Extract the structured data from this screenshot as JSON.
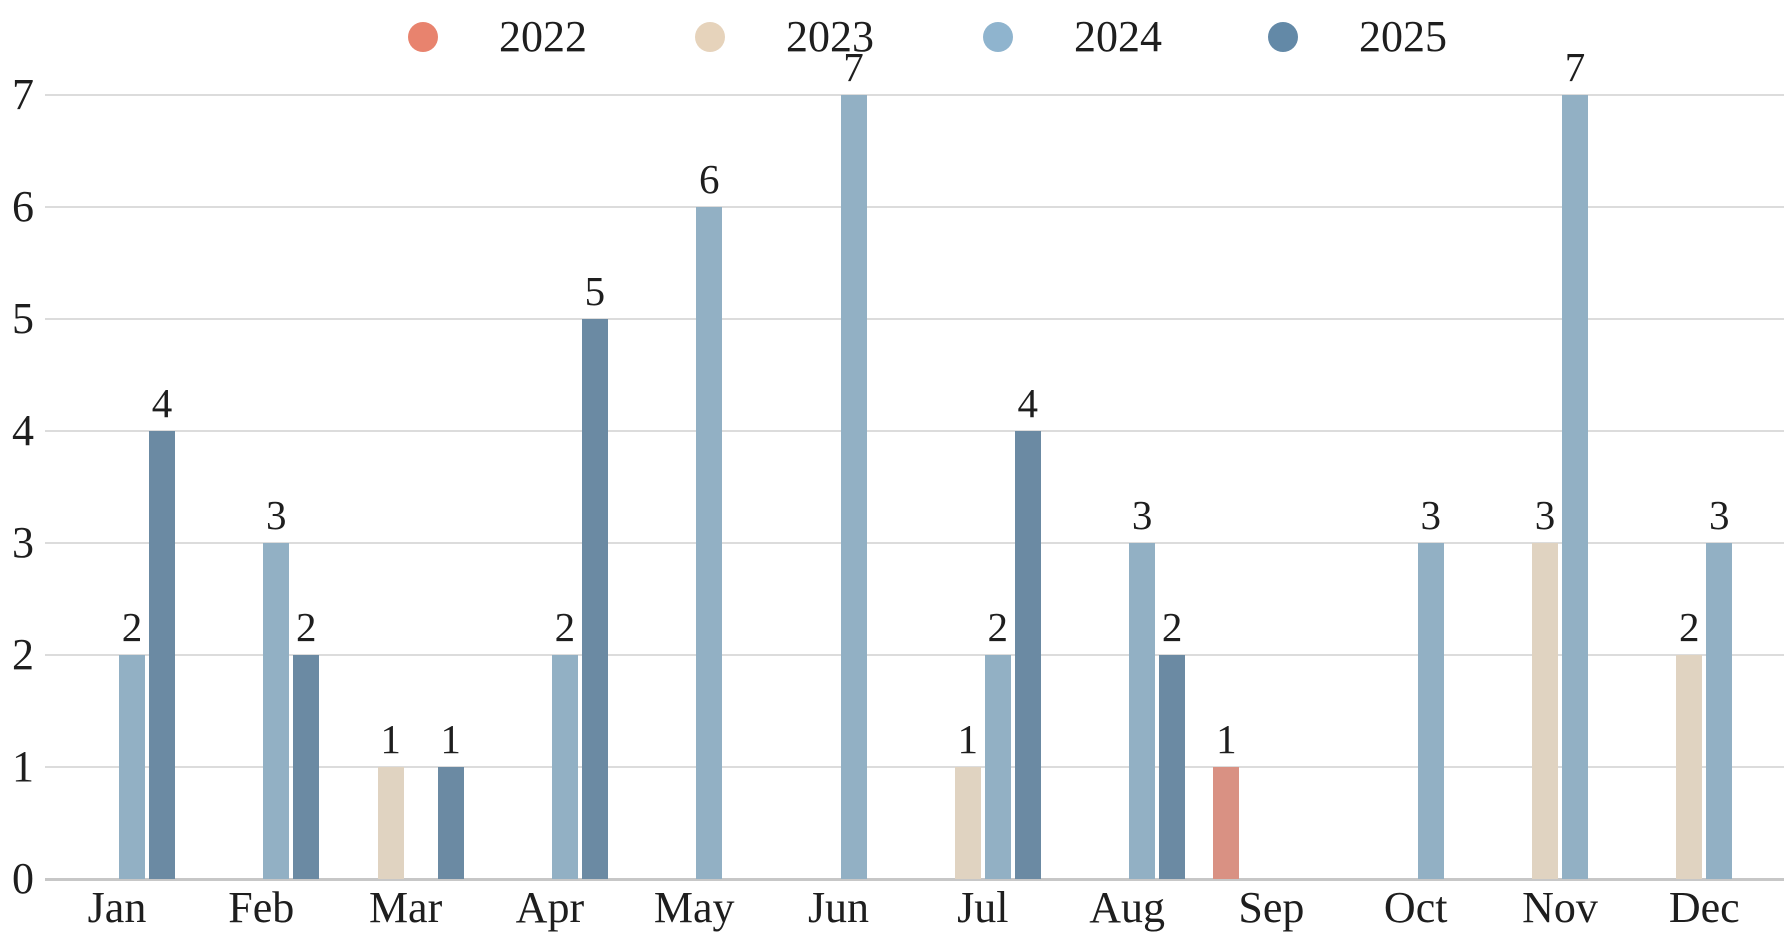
{
  "chart_data": {
    "type": "bar",
    "title": "",
    "xlabel": "",
    "ylabel": "",
    "categories": [
      "Jan",
      "Feb",
      "Mar",
      "Apr",
      "May",
      "Jun",
      "Jul",
      "Aug",
      "Sep",
      "Oct",
      "Nov",
      "Dec"
    ],
    "series": [
      {
        "name": "2022",
        "dot_color": "#E8836E",
        "bar_color": "#D99183",
        "values": [
          null,
          null,
          null,
          null,
          null,
          null,
          null,
          null,
          1,
          null,
          null,
          null
        ]
      },
      {
        "name": "2023",
        "dot_color": "#E6D3BB",
        "bar_color": "#E0D3C1",
        "values": [
          null,
          null,
          1,
          null,
          null,
          null,
          1,
          null,
          null,
          null,
          3,
          2
        ]
      },
      {
        "name": "2024",
        "dot_color": "#8FB4CE",
        "bar_color": "#92B0C4",
        "values": [
          2,
          3,
          null,
          2,
          6,
          7,
          2,
          3,
          null,
          3,
          7,
          3
        ]
      },
      {
        "name": "2025",
        "dot_color": "#6389A7",
        "bar_color": "#6B8AA3",
        "values": [
          4,
          2,
          1,
          5,
          null,
          null,
          4,
          2,
          null,
          null,
          null,
          null
        ]
      }
    ],
    "ylim": [
      0,
      7
    ],
    "yticks": [
      0,
      1,
      2,
      3,
      4,
      5,
      6,
      7
    ],
    "grid": true,
    "legend_position": "top",
    "bar_value_labels": true
  },
  "style": {
    "background": "#FFFFFF",
    "text_color": "#1E1E1E",
    "gridline_color": "#DCDCDC",
    "baseline_color": "#C7C7C7"
  }
}
